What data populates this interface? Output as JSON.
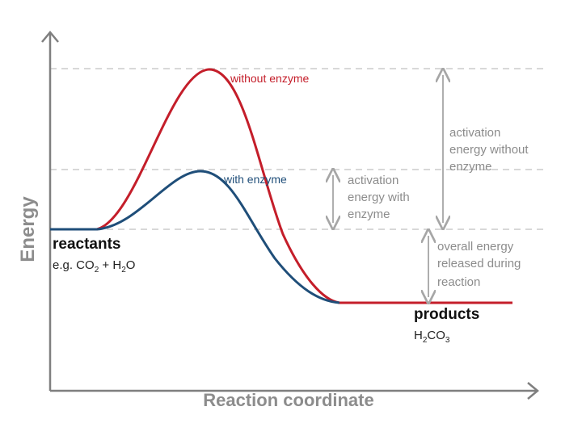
{
  "axes": {
    "y_label": "Energy",
    "x_label": "Reaction coordinate"
  },
  "curves": {
    "without_enzyme": "without enzyme",
    "with_enzyme": "with enzyme"
  },
  "states": {
    "reactants_title": "reactants",
    "reactants_example_prefix": "e.g. CO",
    "reactants_example_sub1": "2",
    "reactants_example_mid": " + H",
    "reactants_example_sub2": "2",
    "reactants_example_suffix": "O",
    "products_title": "products",
    "products_formula_p1": "H",
    "products_formula_s1": "2",
    "products_formula_p2": "CO",
    "products_formula_s2": "3"
  },
  "annotations": {
    "ea_without": [
      "activation",
      "energy without",
      "enzyme"
    ],
    "ea_with": [
      "activation",
      "energy with",
      "enzyme"
    ],
    "overall": [
      "overall energy",
      "released during",
      "reaction"
    ]
  },
  "colors": {
    "without_enzyme": "#c41e2a",
    "with_enzyme": "#1f4e79",
    "axis": "#7f7f7f",
    "annotation": "#8c8c8c",
    "dashed": "#cccccc"
  }
}
